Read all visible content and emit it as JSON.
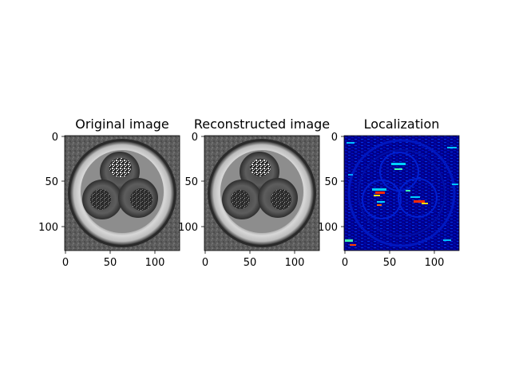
{
  "figure": {
    "panels": [
      {
        "title": "Original image",
        "kind": "grayscale",
        "x_ticks": [
          "0",
          "50",
          "100"
        ],
        "y_ticks": [
          "0",
          "50",
          "100"
        ]
      },
      {
        "title": "Reconstructed image",
        "kind": "grayscale",
        "x_ticks": [
          "0",
          "50",
          "100"
        ],
        "y_ticks": [
          "0",
          "50",
          "100"
        ]
      },
      {
        "title": "Localization",
        "kind": "heatmap-jet",
        "x_ticks": [
          "0",
          "50",
          "100"
        ],
        "y_ticks": [
          "0",
          "50",
          "100"
        ]
      }
    ],
    "colors": {
      "image_background": "#5a5a5a",
      "outer_ring": "#cfcfcf",
      "inner_disk": "#7e7e7e",
      "pellet_dark": "#3c3c3c",
      "pellet_mid": "#6f6f6f",
      "heatmap_base": "#00008c",
      "heatmap_hot": "#ff2a00",
      "heatmap_warm": "#ffe000",
      "heatmap_cool": "#00d0ff"
    }
  }
}
